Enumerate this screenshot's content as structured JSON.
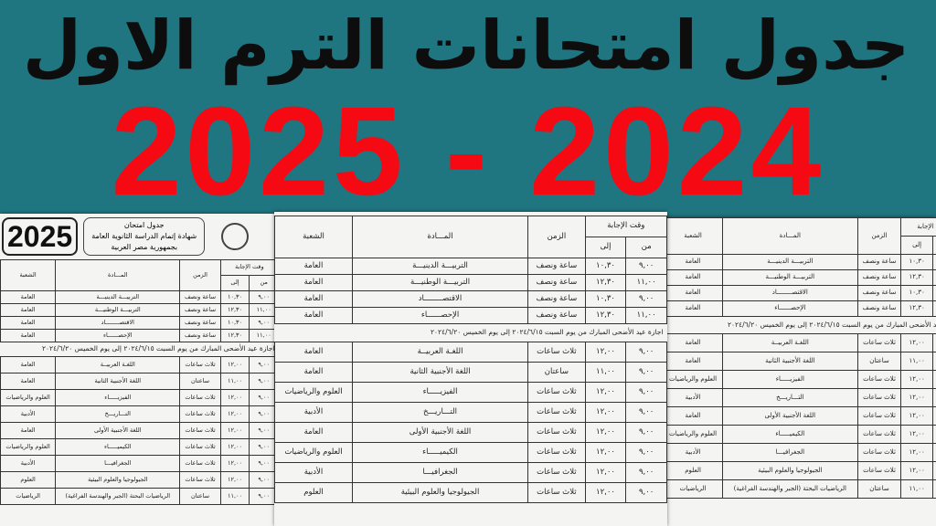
{
  "headline": {
    "title": "جدول امتحانات الترم الاول",
    "years": "2025 - 2024",
    "title_color": "#0d0d0d",
    "years_color": "#f50a14",
    "background": "#1f7580"
  },
  "left_sheet": {
    "year_badge": "2025",
    "doc_title": [
      "جدول امتحان",
      "شهادة إتمام الدراسة الثانوية العامة",
      "بجمهورية مصر العربية"
    ]
  },
  "table": {
    "headers": {
      "answer_time": "وقت الإجابة",
      "from": "من",
      "to": "إلى",
      "duration": "الزمن",
      "subject": "المـــادة",
      "branch": "الشعبة"
    },
    "rows_part1": [
      [
        "٩,٠٠",
        "١٠,٣٠",
        "ساعة ونصف",
        "التربيـــة الدينيـــة",
        "العامة"
      ],
      [
        "١١,٠٠",
        "١٢,٣٠",
        "ساعة ونصف",
        "التربيـــة الوطنيـــة",
        "العامة"
      ],
      [
        "٩,٠٠",
        "١٠,٣٠",
        "ساعة ونصف",
        "الاقتصــــــــاد",
        "العامة"
      ],
      [
        "١١,٠٠",
        "١٢,٣٠",
        "ساعة ونصف",
        "الإحصــــــاء",
        "العامة"
      ]
    ],
    "holiday_note": "اجازة عيد الأضحى المبارك من يوم السبت ٢٠٢٤/٦/١٥ إلى يوم الخميس ٢٠٢٤/٦/٢٠",
    "rows_part2": [
      [
        "٩,٠٠",
        "١٢,٠٠",
        "ثلاث ساعات",
        "اللغـة العربيــة",
        "العامة"
      ],
      [
        "٩,٠٠",
        "١١,٠٠",
        "ساعتان",
        "اللغة الأجنبية الثانية",
        "العامة"
      ],
      [
        "٩,٠٠",
        "١٢,٠٠",
        "ثلاث ساعات",
        "الفيزيـــــاء",
        "العلوم والرياضيات"
      ],
      [
        "٩,٠٠",
        "١٢,٠٠",
        "ثلاث ساعات",
        "التـــاريـــخ",
        "الأدبية"
      ],
      [
        "٩,٠٠",
        "١٢,٠٠",
        "ثلاث ساعات",
        "اللغة الأجنبية الأولى",
        "العامة"
      ],
      [
        "٩,٠٠",
        "١٢,٠٠",
        "ثلاث ساعات",
        "الكيميـــــاء",
        "العلوم والرياضيات"
      ],
      [
        "٩,٠٠",
        "١٢,٠٠",
        "ثلاث ساعات",
        "الجغرافيـــا",
        "الأدبية"
      ],
      [
        "٩,٠٠",
        "١٢,٠٠",
        "ثلاث ساعات",
        "الجيولوجيا والعلوم البيئية",
        "العلوم"
      ],
      [
        "٩,٠٠",
        "١١,٠٠",
        "ساعتان",
        "الرياضيات البحتة (الجبر والهندسة الفراغية)",
        "الرياضيات"
      ]
    ]
  }
}
